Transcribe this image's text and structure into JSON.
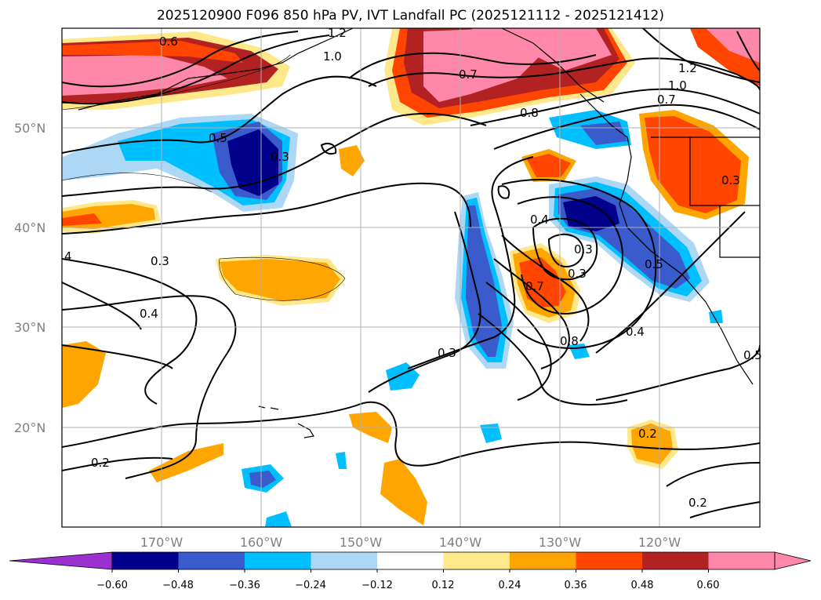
{
  "title": "2025120900 F096 850 hPa PV, IVT Landfall PC (2025121112 - 2025121412)",
  "map": {
    "lat_labels": [
      "50°N",
      "40°N",
      "30°N",
      "20°N"
    ],
    "lon_labels": [
      "170°W",
      "160°W",
      "150°W",
      "140°W",
      "130°W",
      "120°W"
    ],
    "contour_labels": [
      "0.6",
      "1.2",
      "1.0",
      "0.7",
      "0.8",
      "1.2",
      "1.0",
      "0.7",
      "0.5",
      "0.4",
      "0.3",
      "0.5",
      "0.3",
      "0.4",
      "0.3",
      "0.7",
      "0.8",
      "0.4",
      "0.3",
      "0.2",
      "0.2",
      "0.2",
      "0.3",
      "0.3",
      "0.5",
      "4"
    ]
  },
  "colorbar": {
    "tick_labels": [
      "−0.60",
      "−0.48",
      "−0.36",
      "−0.24",
      "−0.12",
      "0.12",
      "0.24",
      "0.36",
      "0.48",
      "0.60"
    ],
    "colors": [
      "#9b30d0",
      "#00008b",
      "#3a5bcc",
      "#00bfff",
      "#add8f5",
      "#ffffff",
      "#ffe88a",
      "#ffa500",
      "#ff4500",
      "#b22222",
      "#ff88aa",
      "#ff88aa"
    ]
  }
}
